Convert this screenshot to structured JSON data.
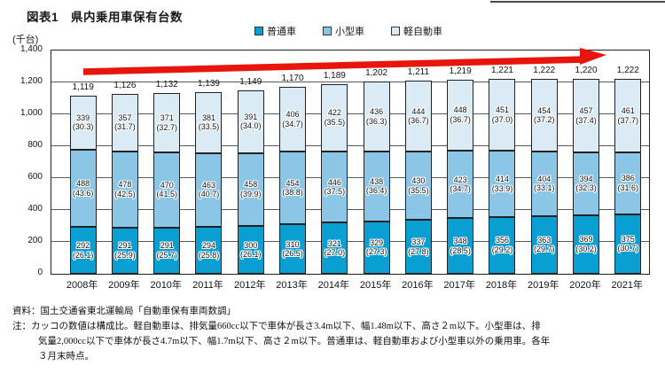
{
  "title": "図表1　県内乗用車保有台数",
  "legend": [
    {
      "label": "普通車",
      "color": "#0a9fd2"
    },
    {
      "label": "小型車",
      "color": "#8cc6e6"
    },
    {
      "label": "軽自動車",
      "color": "#daebf6"
    }
  ],
  "chart_data": {
    "type": "bar",
    "stacked": true,
    "title": "県内乗用車保有台数",
    "ylabel": "(千台)",
    "ylim": [
      0,
      1400
    ],
    "ytick_step": 200,
    "yticks": [
      "1,400",
      "1,200",
      "1,000",
      "800",
      "600",
      "400",
      "200",
      "0"
    ],
    "grid": true,
    "legend_position": "top",
    "categories": [
      "2008年",
      "2009年",
      "2010年",
      "2011年",
      "2012年",
      "2013年",
      "2014年",
      "2015年",
      "2016年",
      "2017年",
      "2018年",
      "2019年",
      "2020年",
      "2021年"
    ],
    "series": [
      {
        "name": "普通車",
        "key": "normal",
        "color": "#0a9fd2",
        "values": [
          292,
          291,
          291,
          294,
          300,
          310,
          321,
          329,
          337,
          348,
          356,
          363,
          369,
          375
        ],
        "pct": [
          26.1,
          25.9,
          25.7,
          25.8,
          26.1,
          26.5,
          27.0,
          27.3,
          27.8,
          28.5,
          29.2,
          29.7,
          30.2,
          30.7
        ]
      },
      {
        "name": "小型車",
        "key": "small",
        "color": "#8cc6e6",
        "values": [
          488,
          478,
          470,
          463,
          458,
          454,
          446,
          438,
          430,
          423,
          414,
          404,
          394,
          386
        ],
        "pct": [
          43.6,
          42.5,
          41.5,
          40.7,
          39.9,
          38.8,
          37.5,
          36.4,
          35.5,
          34.7,
          33.9,
          33.1,
          32.3,
          31.6
        ]
      },
      {
        "name": "軽自動車",
        "key": "kei",
        "color": "#daebf6",
        "values": [
          339,
          357,
          371,
          381,
          391,
          406,
          422,
          436,
          444,
          448,
          451,
          454,
          457,
          461
        ],
        "pct": [
          30.3,
          31.7,
          32.7,
          33.5,
          34.0,
          34.7,
          35.5,
          36.3,
          36.7,
          36.7,
          37.0,
          37.2,
          37.4,
          37.7
        ]
      }
    ],
    "totals": [
      "1,119",
      "1,126",
      "1,132",
      "1,139",
      "1,149",
      "1,170",
      "1,189",
      "1,202",
      "1,211",
      "1,219",
      "1,221",
      "1,222",
      "1,220",
      "1,222"
    ]
  },
  "annotations": {
    "trend_arrow_color": "#e8150d"
  },
  "footer": {
    "source": "資料：国土交通省東北運輸局「自動車保有車両数調」",
    "note_lines": [
      "注：カッコの数値は構成比。軽自動車は、排気量660cc以下で車体が長さ3.4m以下、幅1.48m以下、高さ２m以下。小型車は、排",
      "気量2,000cc以下で車体が長さ4.7m以下、幅1.7m以下、高さ２m以下。普通車は、軽自動車および小型車以外の乗用車。各年",
      "３月末時点。"
    ]
  }
}
